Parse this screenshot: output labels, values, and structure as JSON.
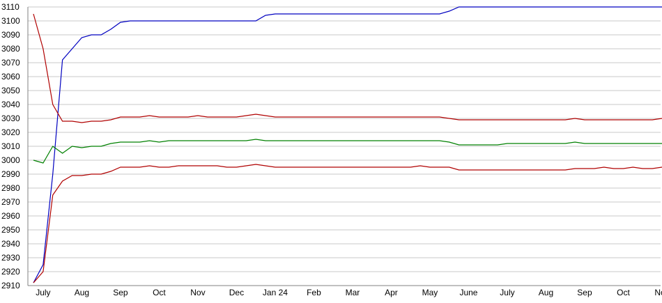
{
  "chart_data": {
    "type": "line",
    "categories": [
      null,
      "July",
      null,
      null,
      null,
      "Aug",
      null,
      null,
      null,
      "Sep",
      null,
      null,
      null,
      "Oct",
      null,
      null,
      null,
      "Nov",
      null,
      null,
      null,
      "Dec",
      null,
      null,
      null,
      "Jan 24",
      null,
      null,
      null,
      "Feb",
      null,
      null,
      null,
      "Mar",
      null,
      null,
      null,
      "Apr",
      null,
      null,
      null,
      "May",
      null,
      null,
      null,
      "June",
      null,
      null,
      null,
      "July",
      null,
      null,
      null,
      "Aug",
      null,
      null,
      null,
      "Sep",
      null,
      null,
      null,
      "Oct",
      null,
      null,
      null,
      "Nov"
    ],
    "series": [
      {
        "color": "#0000c0",
        "values": [
          2912,
          2925,
          2990,
          3072,
          3080,
          3088,
          3090,
          3090,
          3094,
          3099,
          3100,
          3100,
          3100,
          3100,
          3100,
          3100,
          3100,
          3100,
          3100,
          3100,
          3100,
          3100,
          3100,
          3100,
          3104,
          3105,
          3105,
          3105,
          3105,
          3105,
          3105,
          3105,
          3105,
          3105,
          3105,
          3105,
          3105,
          3105,
          3105,
          3105,
          3105,
          3105,
          3105,
          3107,
          3110,
          3110,
          3110,
          3110,
          3110,
          3110,
          3110,
          3110,
          3110,
          3110,
          3110,
          3110,
          3110,
          3110,
          3110,
          3110,
          3110,
          3110,
          3110,
          3110,
          3110,
          3110
        ]
      },
      {
        "color": "#b00000",
        "values": [
          3105,
          3080,
          3040,
          3028,
          3028,
          3027,
          3028,
          3028,
          3029,
          3031,
          3031,
          3031,
          3032,
          3031,
          3031,
          3031,
          3031,
          3032,
          3031,
          3031,
          3031,
          3031,
          3032,
          3033,
          3032,
          3031,
          3031,
          3031,
          3031,
          3031,
          3031,
          3031,
          3031,
          3031,
          3031,
          3031,
          3031,
          3031,
          3031,
          3031,
          3031,
          3031,
          3031,
          3030,
          3029,
          3029,
          3029,
          3029,
          3029,
          3029,
          3029,
          3029,
          3029,
          3029,
          3029,
          3029,
          3030,
          3029,
          3029,
          3029,
          3029,
          3029,
          3029,
          3029,
          3029,
          3030
        ]
      },
      {
        "color": "#008000",
        "values": [
          3000,
          2998,
          3010,
          3005,
          3010,
          3009,
          3010,
          3010,
          3012,
          3013,
          3013,
          3013,
          3014,
          3013,
          3014,
          3014,
          3014,
          3014,
          3014,
          3014,
          3014,
          3014,
          3014,
          3015,
          3014,
          3014,
          3014,
          3014,
          3014,
          3014,
          3014,
          3014,
          3014,
          3014,
          3014,
          3014,
          3014,
          3014,
          3014,
          3014,
          3014,
          3014,
          3014,
          3013,
          3011,
          3011,
          3011,
          3011,
          3011,
          3012,
          3012,
          3012,
          3012,
          3012,
          3012,
          3012,
          3013,
          3012,
          3012,
          3012,
          3012,
          3012,
          3012,
          3012,
          3012,
          3012
        ]
      },
      {
        "color": "#b00000",
        "values": [
          2912,
          2920,
          2975,
          2985,
          2989,
          2989,
          2990,
          2990,
          2992,
          2995,
          2995,
          2995,
          2996,
          2995,
          2995,
          2996,
          2996,
          2996,
          2996,
          2996,
          2995,
          2995,
          2996,
          2997,
          2996,
          2995,
          2995,
          2995,
          2995,
          2995,
          2995,
          2995,
          2995,
          2995,
          2995,
          2995,
          2995,
          2995,
          2995,
          2995,
          2996,
          2995,
          2995,
          2995,
          2993,
          2993,
          2993,
          2993,
          2993,
          2993,
          2993,
          2993,
          2993,
          2993,
          2993,
          2993,
          2994,
          2994,
          2994,
          2995,
          2994,
          2994,
          2995,
          2994,
          2994,
          2995
        ]
      }
    ],
    "ylim": [
      2910,
      3110
    ],
    "yticks": [
      2910,
      2920,
      2930,
      2940,
      2950,
      2960,
      2970,
      2980,
      2990,
      3000,
      3010,
      3020,
      3030,
      3040,
      3050,
      3060,
      3070,
      3080,
      3090,
      3100,
      3110
    ],
    "grid": true
  }
}
